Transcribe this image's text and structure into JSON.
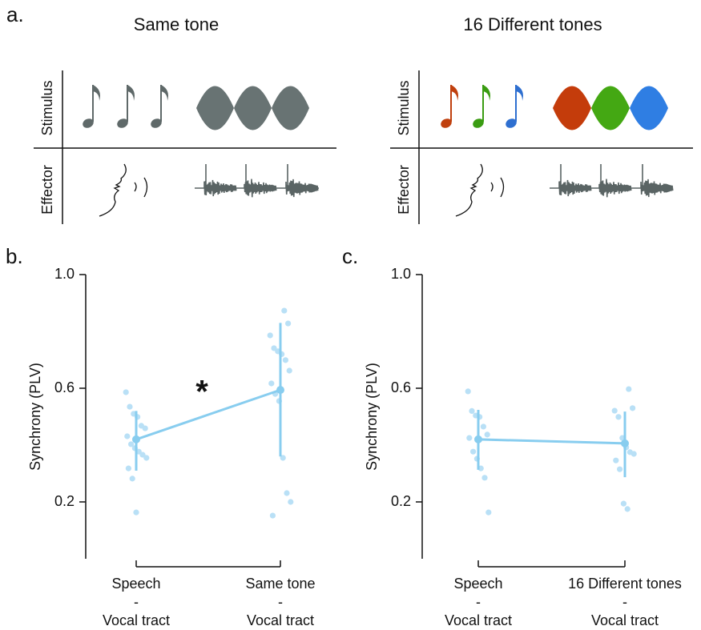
{
  "panel_a": {
    "label": "a.",
    "left_title": "Same tone",
    "right_title": "16 Different tones",
    "row_labels": [
      "Stimulus",
      "Effector"
    ]
  },
  "chart_data": [
    {
      "type": "strip",
      "panel_label": "b.",
      "ylabel": "Synchrony (PLV)",
      "annotation": "*",
      "categories": [
        [
          "Speech",
          "-",
          "Vocal tract"
        ],
        [
          "Same tone",
          "-",
          "Vocal tract"
        ]
      ],
      "ylim": [
        0,
        1
      ],
      "yticks": [
        0.2,
        0.6,
        {
          "value": 1,
          "label": "1.0"
        }
      ],
      "mean_color": "#88cdef",
      "point_color": "#b9e0f6",
      "means": [
        0.42,
        0.594
      ],
      "ci_low": [
        0.31,
        0.36
      ],
      "ci_high": [
        0.52,
        0.83
      ],
      "points": [
        [
          0.586,
          0.535,
          0.51,
          0.499,
          0.468,
          0.459,
          0.431,
          0.403,
          0.389,
          0.377,
          0.366,
          0.355,
          0.318,
          0.282,
          0.163
        ],
        [
          0.873,
          0.828,
          0.786,
          0.741,
          0.73,
          0.72,
          0.699,
          0.662,
          0.617,
          0.58,
          0.555,
          0.355,
          0.231,
          0.2,
          0.152
        ]
      ]
    },
    {
      "type": "strip",
      "panel_label": "c.",
      "ylabel": "Synchrony (PLV)",
      "categories": [
        [
          "Speech",
          "-",
          "Vocal tract"
        ],
        [
          "16 Different tones",
          "-",
          "Vocal tract"
        ]
      ],
      "ylim": [
        0,
        1
      ],
      "yticks": [
        0.2,
        0.6,
        {
          "value": 1,
          "label": "1.0"
        }
      ],
      "mean_color": "#88cdef",
      "point_color": "#b9e0f6",
      "means": [
        0.42,
        0.406
      ],
      "ci_low": [
        0.313,
        0.287
      ],
      "ci_high": [
        0.524,
        0.518
      ],
      "points": [
        [
          0.589,
          0.52,
          0.504,
          0.499,
          0.465,
          0.437,
          0.425,
          0.377,
          0.352,
          0.318,
          0.285,
          0.163
        ],
        [
          0.597,
          0.53,
          0.521,
          0.499,
          0.425,
          0.392,
          0.375,
          0.369,
          0.346,
          0.315,
          0.194,
          0.175
        ]
      ]
    }
  ]
}
